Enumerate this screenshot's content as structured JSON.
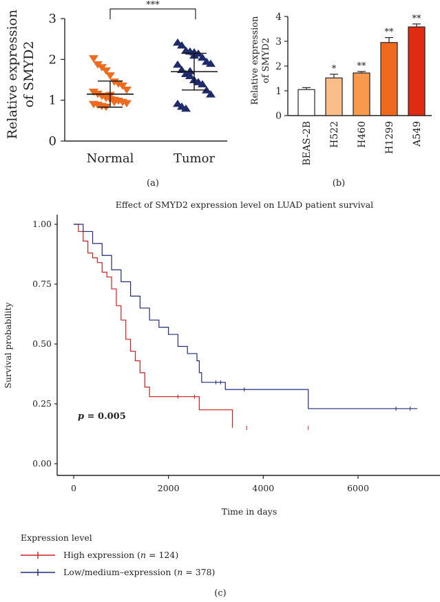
{
  "colors": {
    "normal": "#ee6a1f",
    "tumor": "#1f2a6b",
    "high": "#cc1f1f",
    "low": "#1f2a7a",
    "bars": [
      "#ffffff",
      "#fbbd8a",
      "#f79a4d",
      "#ef6a1d",
      "#de2b12"
    ]
  },
  "chart_data": [
    {
      "panel": "a",
      "type": "scatter",
      "ylabel_line1": "Relative expression",
      "ylabel_line2": "of SMYD2",
      "ylim": [
        0,
        3
      ],
      "yticks": [
        "0",
        "1",
        "2",
        "3"
      ],
      "categories": [
        "Normal",
        "Tumor"
      ],
      "significance": "***",
      "panel_label": "(a)",
      "series": [
        {
          "marker": "triangle-down",
          "mean": 1.15,
          "sd_low": 0.83,
          "sd_high": 1.47,
          "values": [
            2.02,
            1.87,
            1.8,
            1.72,
            1.6,
            1.45,
            1.4,
            1.35,
            1.25,
            1.2,
            1.15,
            1.1,
            1.05,
            1.02,
            1.0,
            0.98,
            0.95,
            0.92,
            0.9,
            0.88,
            0.85,
            0.83,
            1.12,
            0.95
          ]
        },
        {
          "marker": "triangle-up",
          "mean": 1.7,
          "sd_low": 1.25,
          "sd_high": 2.15,
          "values": [
            2.42,
            2.35,
            2.22,
            2.2,
            2.18,
            2.15,
            2.05,
            1.95,
            1.9,
            1.88,
            1.75,
            1.65,
            1.6,
            1.5,
            1.45,
            1.4,
            1.25,
            1.15,
            0.92,
            0.85,
            0.8,
            1.72,
            2.1
          ]
        }
      ]
    },
    {
      "panel": "b",
      "type": "bar",
      "ylabel_line1": "Relative expression",
      "ylabel_line2": "of SMYD2",
      "ylim": [
        0,
        4
      ],
      "yticks": [
        "0",
        "1",
        "2",
        "3",
        "4"
      ],
      "categories": [
        "BEAS-2B",
        "H522",
        "H460",
        "H1299",
        "A549"
      ],
      "values": [
        1.05,
        1.52,
        1.72,
        2.95,
        3.58
      ],
      "errors": [
        0.08,
        0.15,
        0.06,
        0.2,
        0.12
      ],
      "significance": [
        "",
        "*",
        "**",
        "**",
        "**"
      ],
      "panel_label": "(b)"
    },
    {
      "panel": "c",
      "type": "line",
      "title": "Effect of SMYD2 expression level on LUAD patient survival",
      "xlabel": "Time in days",
      "ylabel": "Survival probability",
      "xlim": [
        0,
        7500
      ],
      "ylim": [
        0,
        1
      ],
      "xticks": [
        "0",
        "2000",
        "4000",
        "6000"
      ],
      "yticks": [
        "0.00",
        "0.25",
        "0.50",
        "0.75",
        "1.00"
      ],
      "annotation": "p = 0.005",
      "legend_title": "Expression level",
      "legend_items": [
        "High expression (n = 124)",
        "Low/medium–expression (n = 378)"
      ],
      "panel_label": "(c)",
      "series": [
        {
          "name": "High expression (n = 124)",
          "points": [
            [
              0,
              1.0
            ],
            [
              100,
              0.97
            ],
            [
              200,
              0.93
            ],
            [
              300,
              0.88
            ],
            [
              400,
              0.86
            ],
            [
              500,
              0.84
            ],
            [
              600,
              0.8
            ],
            [
              700,
              0.78
            ],
            [
              800,
              0.73
            ],
            [
              900,
              0.66
            ],
            [
              1000,
              0.6
            ],
            [
              1100,
              0.52
            ],
            [
              1200,
              0.47
            ],
            [
              1300,
              0.43
            ],
            [
              1400,
              0.38
            ],
            [
              1500,
              0.32
            ],
            [
              1600,
              0.28
            ],
            [
              2650,
              0.28
            ],
            [
              2650,
              0.225
            ],
            [
              3350,
              0.225
            ],
            [
              3350,
              0.15
            ]
          ],
          "censor": [
            [
              2200,
              0.28
            ],
            [
              2550,
              0.28
            ],
            [
              3650,
              0.15
            ],
            [
              4950,
              0.15
            ]
          ]
        },
        {
          "name": "Low/medium–expression (n = 378)",
          "points": [
            [
              0,
              1.0
            ],
            [
              200,
              0.97
            ],
            [
              400,
              0.92
            ],
            [
              600,
              0.87
            ],
            [
              800,
              0.81
            ],
            [
              1000,
              0.76
            ],
            [
              1200,
              0.7
            ],
            [
              1400,
              0.65
            ],
            [
              1600,
              0.6
            ],
            [
              1800,
              0.57
            ],
            [
              2000,
              0.54
            ],
            [
              2200,
              0.49
            ],
            [
              2400,
              0.46
            ],
            [
              2600,
              0.43
            ],
            [
              2650,
              0.38
            ],
            [
              2700,
              0.34
            ],
            [
              3200,
              0.34
            ],
            [
              3200,
              0.31
            ],
            [
              4950,
              0.31
            ],
            [
              4950,
              0.23
            ],
            [
              7250,
              0.23
            ]
          ],
          "censor": [
            [
              3000,
              0.34
            ],
            [
              3100,
              0.34
            ],
            [
              3600,
              0.31
            ],
            [
              6800,
              0.23
            ],
            [
              7100,
              0.23
            ]
          ]
        }
      ]
    }
  ]
}
